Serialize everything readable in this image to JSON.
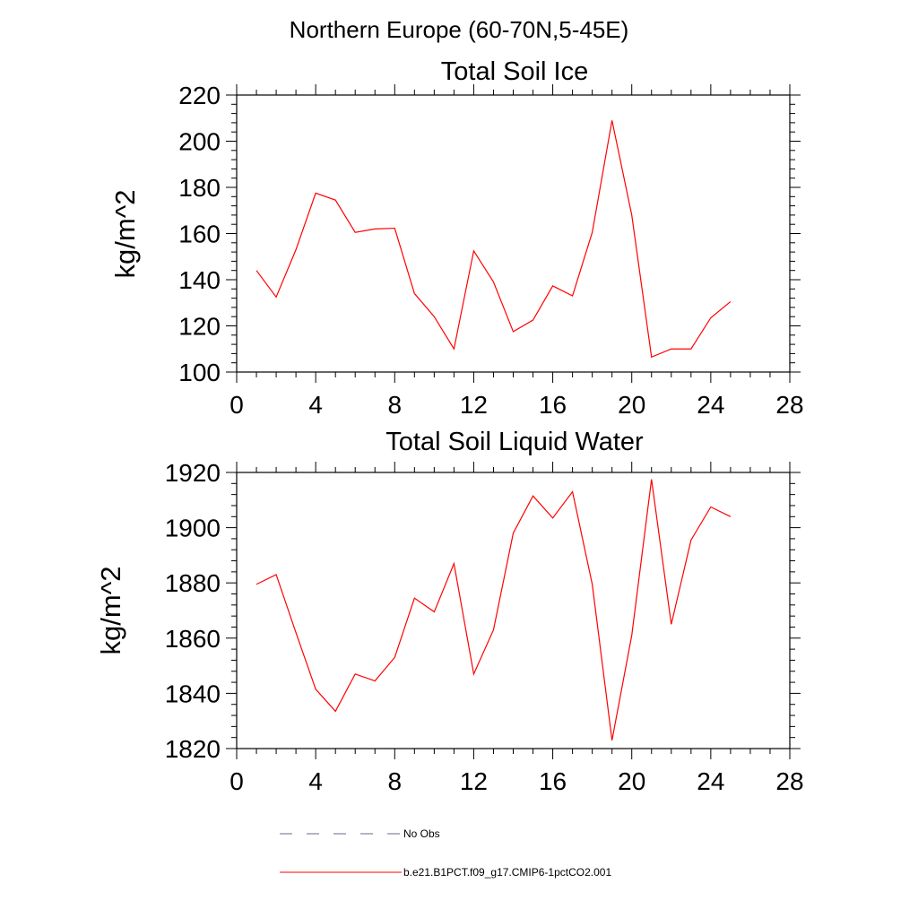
{
  "figure": {
    "title": "Northern Europe (60-70N,5-45E)"
  },
  "chart_data": [
    {
      "type": "line",
      "title": "Total Soil Ice",
      "ylabel": "kg/m^2",
      "xlabel": "",
      "xlim": [
        0,
        28
      ],
      "ylim": [
        100,
        220
      ],
      "xticks": [
        0,
        4,
        8,
        12,
        16,
        20,
        24,
        28
      ],
      "yticks": [
        100,
        120,
        140,
        160,
        180,
        200,
        220
      ],
      "grid": false,
      "x": [
        1,
        2,
        3,
        4,
        5,
        6,
        7,
        8,
        9,
        10,
        11,
        12,
        13,
        14,
        15,
        16,
        17,
        18,
        19,
        20,
        21,
        22,
        23,
        24,
        25
      ],
      "series": [
        {
          "name": "b.e21.B1PCT.f09_g17.CMIP6-1pctCO2.001",
          "color": "#ff0000",
          "values": [
            144,
            132.5,
            153,
            177.5,
            174.5,
            160.5,
            162,
            162.3,
            134,
            124,
            110,
            152.5,
            139,
            117.5,
            122.5,
            137.3,
            133,
            160.5,
            209,
            168,
            106.5,
            110,
            110,
            123.5,
            130.5
          ]
        }
      ]
    },
    {
      "type": "line",
      "title": "Total Soil Liquid Water",
      "ylabel": "kg/m^2",
      "xlabel": "",
      "xlim": [
        0,
        28
      ],
      "ylim": [
        1820,
        1920
      ],
      "xticks": [
        0,
        4,
        8,
        12,
        16,
        20,
        24,
        28
      ],
      "yticks": [
        1820,
        1840,
        1860,
        1880,
        1900,
        1920
      ],
      "grid": false,
      "x": [
        1,
        2,
        3,
        4,
        5,
        6,
        7,
        8,
        9,
        10,
        11,
        12,
        13,
        14,
        15,
        16,
        17,
        18,
        19,
        20,
        21,
        22,
        23,
        24,
        25
      ],
      "series": [
        {
          "name": "b.e21.B1PCT.f09_g17.CMIP6-1pctCO2.001",
          "color": "#ff0000",
          "values": [
            1879.5,
            1883,
            1862,
            1841.5,
            1833.5,
            1847,
            1844.5,
            1853,
            1874.5,
            1869.5,
            1887,
            1847,
            1863,
            1898,
            1911.5,
            1903.5,
            1913,
            1879.5,
            1823,
            1861,
            1917.5,
            1865,
            1895.5,
            1907.5,
            1904
          ]
        }
      ]
    }
  ],
  "legend": {
    "placement": "bottom",
    "items": [
      {
        "label": "No Obs",
        "style": "dashed",
        "color": "#6a6a8c"
      },
      {
        "label": "b.e21.B1PCT.f09_g17.CMIP6-1pctCO2.001",
        "style": "solid",
        "color": "#ff0000"
      }
    ]
  }
}
